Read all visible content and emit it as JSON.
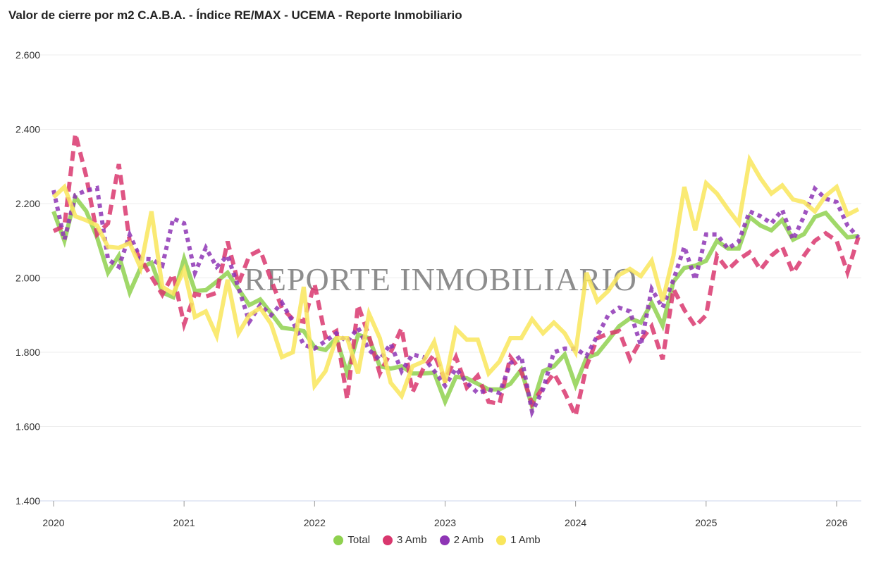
{
  "chart_data": {
    "type": "line",
    "title": "Valor de cierre por m2 C.A.B.A. - Índice RE/MAX - UCEMA - Reporte Inmobiliario",
    "watermark": "REPORTE INMOBILIARIO",
    "x_start": "2020-01",
    "x_frequency": "monthly",
    "x_ticks": [
      "2020",
      "2021",
      "2022",
      "2023",
      "2024",
      "2025",
      "2026"
    ],
    "y_ticks": [
      "1.400",
      "1.600",
      "1.800",
      "2.000",
      "2.200",
      "2.400",
      "2.600"
    ],
    "ylim": [
      1400,
      2600
    ],
    "grid": true,
    "legend": "bottom",
    "series": [
      {
        "name": "Total",
        "color": "#8fd14f",
        "style": "solid",
        "values": [
          2179,
          2100,
          2217,
          2180,
          2109,
          2014,
          2060,
          1961,
          2027,
          2041,
          1961,
          1948,
          2052,
          1965,
          1967,
          1990,
          2014,
          1970,
          1927,
          1942,
          1905,
          1866,
          1862,
          1857,
          1813,
          1806,
          1838,
          1743,
          1847,
          1838,
          1762,
          1756,
          1762,
          1743,
          1743,
          1745,
          1667,
          1734,
          1730,
          1715,
          1700,
          1700,
          1715,
          1753,
          1654,
          1749,
          1762,
          1794,
          1711,
          1785,
          1796,
          1832,
          1870,
          1891,
          1880,
          1933,
          1872,
          1990,
          2027,
          2033,
          2046,
          2100,
          2079,
          2079,
          2164,
          2141,
          2128,
          2156,
          2103,
          2118,
          2164,
          2175,
          2141,
          2109,
          2113
        ]
      },
      {
        "name": "3 Amb",
        "color": "#d9376e",
        "style": "dashed",
        "values": [
          2126,
          2140,
          2388,
          2274,
          2117,
          2147,
          2306,
          2098,
          2052,
          2003,
          1955,
          2010,
          1875,
          1957,
          1950,
          1960,
          2098,
          1984,
          2060,
          2075,
          1995,
          1919,
          1889,
          1882,
          1984,
          1840,
          1857,
          1673,
          1927,
          1843,
          1743,
          1800,
          1865,
          1692,
          1756,
          1794,
          1724,
          1787,
          1705,
          1737,
          1667,
          1661,
          1787,
          1749,
          1661,
          1705,
          1743,
          1692,
          1629,
          1762,
          1838,
          1850,
          1857,
          1781,
          1832,
          1870,
          1781,
          1970,
          1914,
          1870,
          1900,
          2060,
          2022,
          2050,
          2069,
          2022,
          2060,
          2084,
          2014,
          2060,
          2100,
          2120,
          2100,
          2015,
          2110
        ]
      },
      {
        "name": "2 Amb",
        "color": "#8e35b5",
        "style": "dotted",
        "values": [
          2236,
          2103,
          2223,
          2235,
          2242,
          2050,
          2030,
          2116,
          2052,
          2050,
          2033,
          2160,
          2147,
          2014,
          2081,
          2030,
          2060,
          1974,
          1882,
          1927,
          1900,
          1933,
          1882,
          1820,
          1810,
          1830,
          1851,
          1828,
          1866,
          1806,
          1780,
          1823,
          1749,
          1794,
          1787,
          1750,
          1710,
          1756,
          1718,
          1690,
          1700,
          1690,
          1770,
          1790,
          1640,
          1700,
          1800,
          1810,
          1810,
          1790,
          1844,
          1900,
          1920,
          1910,
          1819,
          1970,
          1920,
          1995,
          2084,
          1995,
          2117,
          2117,
          2079,
          2098,
          2179,
          2166,
          2147,
          2183,
          2103,
          2166,
          2240,
          2213,
          2204,
          2141,
          2109
        ]
      },
      {
        "name": "1 Amb",
        "color": "#f9e65c",
        "style": "solid",
        "values": [
          2217,
          2245,
          2166,
          2155,
          2141,
          2084,
          2081,
          2094,
          2027,
          2179,
          1976,
          1958,
          2022,
          1895,
          1910,
          1844,
          1995,
          1851,
          1900,
          1919,
          1876,
          1787,
          1800,
          1976,
          1710,
          1749,
          1838,
          1838,
          1743,
          1904,
          1838,
          1718,
          1682,
          1762,
          1775,
          1828,
          1718,
          1863,
          1834,
          1834,
          1743,
          1775,
          1838,
          1838,
          1889,
          1851,
          1880,
          1851,
          1800,
          2014,
          1937,
          1965,
          2008,
          2024,
          2005,
          2046,
          1938,
          2060,
          2245,
          2128,
          2255,
          2227,
          2185,
          2147,
          2318,
          2268,
          2227,
          2249,
          2211,
          2204,
          2179,
          2221,
          2245,
          2170,
          2185
        ]
      }
    ]
  }
}
